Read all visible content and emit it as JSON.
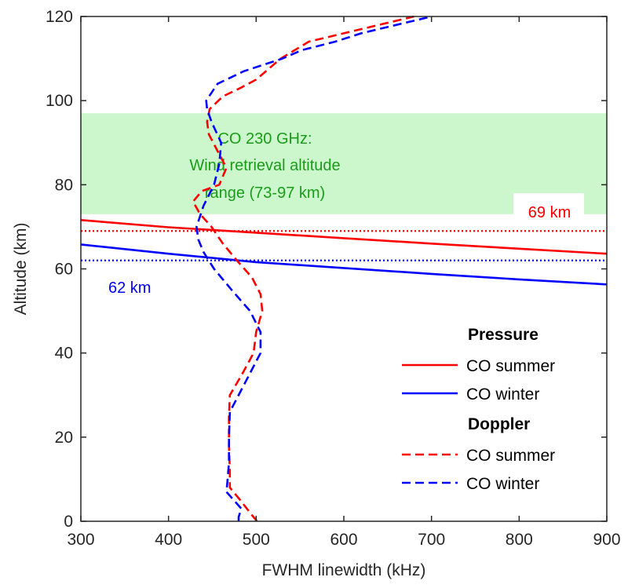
{
  "colors": {
    "summer": "#ff0000",
    "winter": "#0000ff",
    "band_fill": "#ccf7cc",
    "band_text": "#1a9c1a",
    "axis": "#262626"
  },
  "chart_data": {
    "type": "line",
    "xlabel": "FWHM linewidth (kHz)",
    "ylabel": "Altitude (km)",
    "xlim": [
      300,
      900
    ],
    "ylim": [
      0,
      120
    ],
    "xticks": [
      300,
      400,
      500,
      600,
      700,
      800,
      900
    ],
    "yticks": [
      0,
      20,
      40,
      60,
      80,
      100,
      120
    ],
    "grid": false,
    "legend": {
      "placement": "bottom-right",
      "groups": [
        {
          "header": "Pressure",
          "entries": [
            {
              "label": "CO summer",
              "series": "pressure_summer"
            },
            {
              "label": "CO winter",
              "series": "pressure_winter"
            }
          ]
        },
        {
          "header": "Doppler",
          "entries": [
            {
              "label": "CO summer",
              "series": "doppler_summer"
            },
            {
              "label": "CO winter",
              "series": "doppler_winter"
            }
          ]
        }
      ]
    },
    "band": {
      "y_range": [
        73,
        97
      ],
      "lines": [
        "CO 230 GHz:",
        "Wind retrieval altitude",
        "range (73-97 km)"
      ]
    },
    "reference_lines": [
      {
        "id": "summer_ref",
        "y": 69,
        "label": "69 km",
        "color_key": "summer",
        "label_position": "right"
      },
      {
        "id": "winter_ref",
        "y": 62,
        "label": "62 km",
        "color_key": "winter",
        "label_position": "left"
      }
    ],
    "series": [
      {
        "id": "pressure_summer",
        "style": "solid",
        "color_key": "summer",
        "points": [
          [
            300,
            71.6
          ],
          [
            400,
            69.9
          ],
          [
            500,
            68.6
          ],
          [
            600,
            67.3
          ],
          [
            700,
            66.0
          ],
          [
            800,
            64.8
          ],
          [
            900,
            63.6
          ]
        ]
      },
      {
        "id": "pressure_winter",
        "style": "solid",
        "color_key": "winter",
        "points": [
          [
            300,
            65.8
          ],
          [
            400,
            63.6
          ],
          [
            500,
            61.6
          ],
          [
            600,
            60.2
          ],
          [
            700,
            58.8
          ],
          [
            800,
            57.5
          ],
          [
            900,
            56.3
          ]
        ]
      },
      {
        "id": "doppler_summer",
        "style": "dashed",
        "color_key": "summer",
        "points": [
          [
            501,
            0
          ],
          [
            495,
            1.5
          ],
          [
            482,
            5
          ],
          [
            470,
            8
          ],
          [
            470,
            12
          ],
          [
            469,
            18
          ],
          [
            469,
            25
          ],
          [
            470,
            30
          ],
          [
            484,
            35
          ],
          [
            497,
            40
          ],
          [
            500,
            45
          ],
          [
            507,
            50
          ],
          [
            505,
            54
          ],
          [
            495,
            58
          ],
          [
            478,
            62
          ],
          [
            462,
            66
          ],
          [
            449,
            70
          ],
          [
            436,
            73
          ],
          [
            428,
            76
          ],
          [
            438,
            78.5
          ],
          [
            458,
            80
          ],
          [
            466,
            84
          ],
          [
            456,
            88
          ],
          [
            446,
            92
          ],
          [
            444,
            95
          ],
          [
            447,
            98
          ],
          [
            462,
            101
          ],
          [
            482,
            103
          ],
          [
            500,
            105
          ],
          [
            528,
            110
          ],
          [
            560,
            114
          ],
          [
            600,
            116
          ],
          [
            640,
            118
          ],
          [
            670,
            119.5
          ],
          [
            680,
            120
          ]
        ]
      },
      {
        "id": "doppler_winter",
        "style": "dashed",
        "color_key": "winter",
        "points": [
          [
            480,
            0
          ],
          [
            480,
            1
          ],
          [
            483,
            3
          ],
          [
            466,
            7
          ],
          [
            467,
            9
          ],
          [
            469,
            14
          ],
          [
            469,
            20
          ],
          [
            470,
            26
          ],
          [
            485,
            32
          ],
          [
            505,
            40
          ],
          [
            505,
            45
          ],
          [
            493,
            50
          ],
          [
            472,
            55
          ],
          [
            452,
            60
          ],
          [
            440,
            64
          ],
          [
            434,
            67
          ],
          [
            432,
            70
          ],
          [
            440,
            75
          ],
          [
            452,
            80
          ],
          [
            458,
            85
          ],
          [
            460,
            90
          ],
          [
            449,
            95
          ],
          [
            444,
            98
          ],
          [
            443,
            100
          ],
          [
            456,
            104
          ],
          [
            486,
            107
          ],
          [
            530,
            110
          ],
          [
            552,
            112
          ],
          [
            590,
            114
          ],
          [
            620,
            116
          ],
          [
            660,
            118
          ],
          [
            690,
            119.5
          ],
          [
            700,
            120
          ]
        ]
      }
    ]
  }
}
